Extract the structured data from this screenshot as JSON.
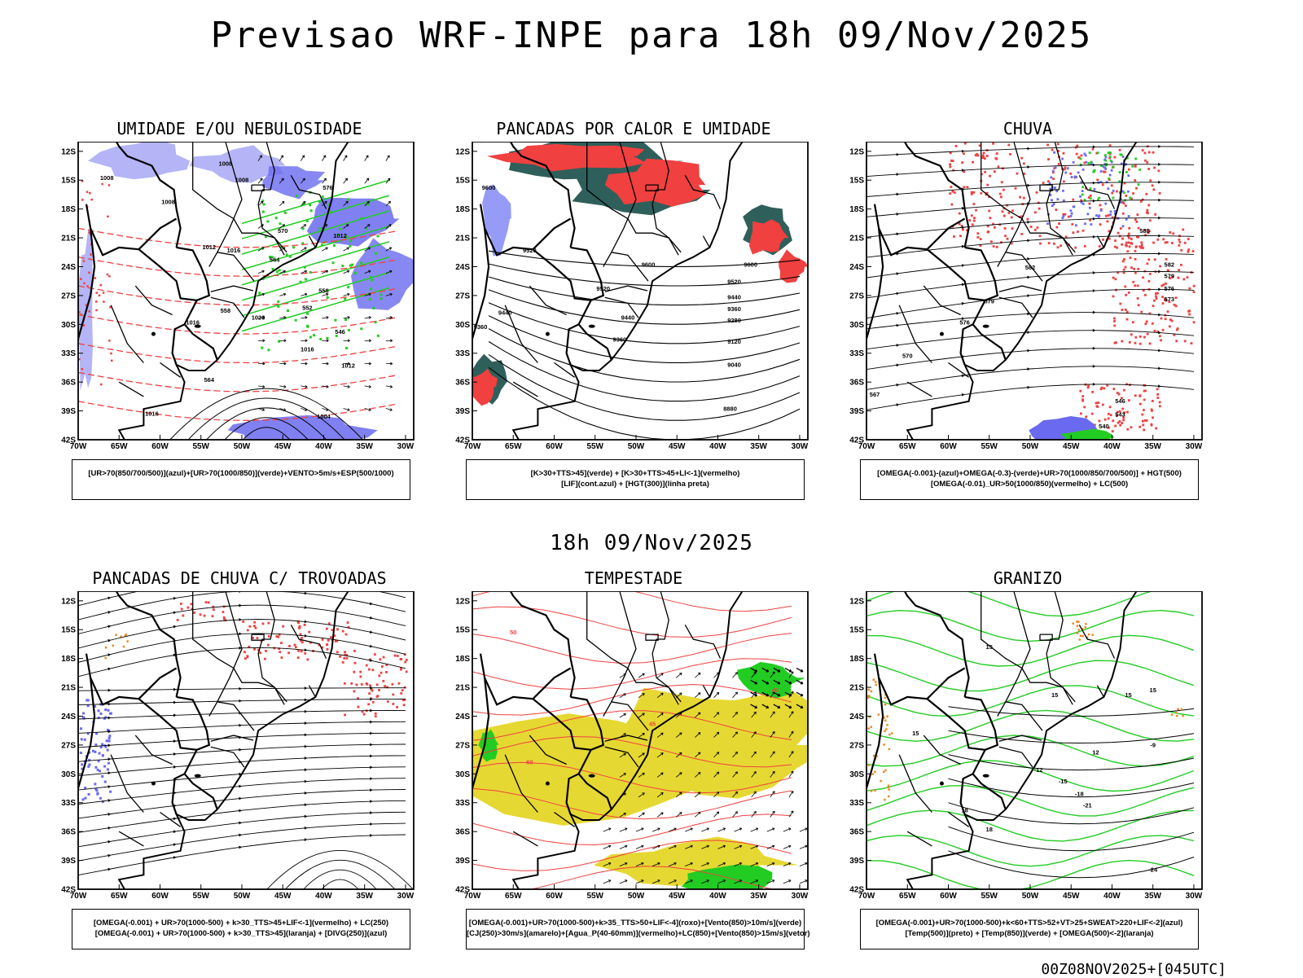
{
  "main_title": "Previsao WRF-INPE  para 18h 09/Nov/2025",
  "sub_title": "18h 09/Nov/2025",
  "footer": "00Z08NOV2025+[045UTC]",
  "lat_ticks": [
    "12S",
    "15S",
    "18S",
    "21S",
    "24S",
    "27S",
    "30S",
    "33S",
    "36S",
    "39S",
    "42S"
  ],
  "lon_ticks": [
    "70W",
    "65W",
    "60W",
    "55W",
    "50W",
    "45W",
    "40W",
    "35W",
    "30W"
  ],
  "colors": {
    "blue": "#6a6af0",
    "light_blue": "#b4b4f6",
    "green": "#22cc22",
    "red": "#f04040",
    "dark_teal": "#2f5f5a",
    "yellow": "#e6d832",
    "orange": "#e88a22",
    "black": "#000000"
  },
  "panels": [
    {
      "title": "UMIDADE E/OU NEBULOSIDADE",
      "legend": [
        "[UR>70(850/700/500)](azul)+[UR>70(1000/850)](verde)+VENTO>5m/s+ESP(500/1000)"
      ],
      "contour_labels": [
        "1008",
        "1008",
        "1008",
        "1008",
        "1012",
        "1012",
        "1016",
        "1016",
        "1016",
        "1020",
        "1012",
        "1004",
        "1016",
        "576",
        "570",
        "564",
        "558",
        "552",
        "546",
        "558",
        "564"
      ]
    },
    {
      "title": "PANCADAS POR CALOR E UMIDADE",
      "legend": [
        "[K>30+TTS>45](verde) + [K>30+TTS>45+LI<-1](vermelho)",
        "[LIF](cont.azul) + [HGT(300)](linha preta)"
      ],
      "contour_labels": [
        "9600",
        "9520",
        "9440",
        "9360",
        "9280",
        "9120",
        "9040",
        "8880",
        "9600",
        "9520",
        "9440",
        "9360",
        "9520",
        "9440",
        "9360",
        "9600"
      ]
    },
    {
      "title": "CHUVA",
      "legend": [
        "[OMEGA(-0.001)-(azul)+OMEGA(-0.3)-(verde)+UR>70(1000/850/700/500)] + HGT(500)",
        "[OMEGA(-0.01)_UR>50(1000/850)(vermelho) + LC(500)"
      ],
      "contour_labels": [
        "585",
        "582",
        "579",
        "576",
        "573",
        "570",
        "567",
        "582",
        "579",
        "576",
        "546",
        "543",
        "540"
      ]
    },
    {
      "title": "PANCADAS DE CHUVA C/ TROVOADAS",
      "legend": [
        "[OMEGA(-0.001) + UR>70(1000-500) + k>30_TTS>45+LIF<-1](vermelho) + LC(250)",
        "[OMEGA(-0.001) + UR>70(1000-500) + k>30_TTS>45](laranja) + [DIVG(250)](azul)"
      ],
      "contour_labels": []
    },
    {
      "title": "TEMPESTADE",
      "legend": [
        "[OMEGA(-0.001)+UR>70(1000-500)+k>35_TTS>50+LIF<-4](roxo)+[Vento(850)>10m/s](verde)",
        "[CJ(250)>30m/s](amarelo)+[Agua_P(40-60mm)](vermelho)+LC(850)+[Vento(850)>15m/s](vetor)"
      ],
      "contour_labels": [
        "50",
        "40",
        "60",
        "45"
      ]
    },
    {
      "title": "GRANIZO",
      "legend": [
        "[OMEGA(-0.001)+UR>70(1000-500)+k<60+TTS>52+VT>25+SWEAT>220+LIF<-2](azul)",
        "[Temp(500)](preto) + [Temp(850)](verde) + [OMEGA(500)<-2](laranja)"
      ],
      "contour_labels": [
        "-9",
        "-12",
        "-15",
        "-18",
        "-21",
        "-24",
        "15",
        "15",
        "15",
        "18",
        "18",
        "15",
        "12",
        "15"
      ]
    }
  ]
}
